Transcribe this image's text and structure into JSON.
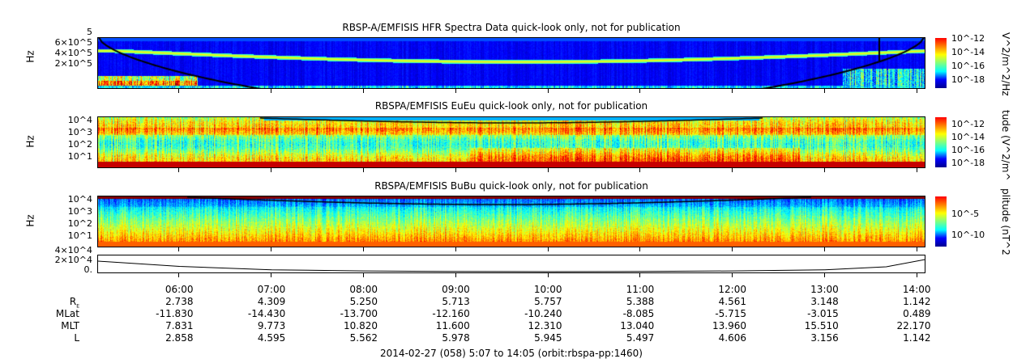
{
  "chart_data": [
    {
      "type": "heatmap",
      "title": "RBSP-A/EMFISIS  HFR Spectra Data quick-look only, not for publication",
      "ylabel": "Hz",
      "ytick_labels": [
        "6×10^5",
        "4×10^5",
        "2×10^5"
      ],
      "ytick_top": "5",
      "colorbar": {
        "label": "V^2/m^2/Hz",
        "tick_labels": [
          "10^-12",
          "10^-14",
          "10^-16",
          "10^-18"
        ],
        "range": [
          1e-18,
          1e-12
        ],
        "scale": "log",
        "colormap": "jet"
      }
    },
    {
      "type": "heatmap",
      "title": "RBSPA/EMFISIS  EuEu quick-look only, not for publication",
      "ylabel": "Hz",
      "ytick_labels": [
        "10^4",
        "10^3",
        "10^2",
        "10^1"
      ],
      "yscale": "log",
      "colorbar": {
        "label": "tude (V^2/m^",
        "tick_labels": [
          "10^-12",
          "10^-14",
          "10^-16",
          "10^-18"
        ],
        "scale": "log",
        "colormap": "jet"
      }
    },
    {
      "type": "heatmap",
      "title": "RBSPA/EMFISIS  BuBu quick-look only, not for publication",
      "ylabel": "Hz",
      "ytick_labels": [
        "10^4",
        "10^3",
        "10^2",
        "10^1"
      ],
      "yscale": "log",
      "colorbar": {
        "label": "plitude (nT^2",
        "tick_labels": [
          "10^-5",
          "10^-10"
        ],
        "scale": "log",
        "colormap": "jet"
      }
    },
    {
      "type": "line",
      "ytick_labels": [
        "4×10^4",
        "2×10^4",
        "0."
      ],
      "ylim": [
        0,
        45000
      ],
      "x": [
        "05:07",
        "06:00",
        "07:00",
        "08:00",
        "09:00",
        "10:00",
        "11:00",
        "12:00",
        "13:00",
        "13:40",
        "14:05"
      ],
      "y": [
        30000,
        16000,
        7000,
        4000,
        2500,
        2200,
        2500,
        4000,
        7000,
        15000,
        34000
      ]
    }
  ],
  "xaxis": {
    "ticks": [
      "06:00",
      "07:00",
      "08:00",
      "09:00",
      "10:00",
      "11:00",
      "12:00",
      "13:00",
      "14:00"
    ]
  },
  "ephemeris": {
    "rows": [
      {
        "label": "R",
        "sub": "E",
        "values": [
          "2.738",
          "4.309",
          "5.250",
          "5.713",
          "5.757",
          "5.388",
          "4.561",
          "3.148",
          "1.142"
        ]
      },
      {
        "label": "MLat",
        "values": [
          "-11.830",
          "-14.430",
          "-13.700",
          "-12.160",
          "-10.240",
          "-8.085",
          "-5.715",
          "-3.015",
          "0.489"
        ]
      },
      {
        "label": "MLT",
        "values": [
          "7.831",
          "9.773",
          "10.820",
          "11.600",
          "12.310",
          "13.040",
          "13.960",
          "15.510",
          "22.170"
        ]
      },
      {
        "label": "L",
        "values": [
          "2.858",
          "4.595",
          "5.562",
          "5.978",
          "5.945",
          "5.497",
          "4.606",
          "3.156",
          "1.142"
        ]
      }
    ]
  },
  "footer": "2014-02-27 (058) 5:07 to 14:05 (orbit:rbspa-pp:1460)"
}
